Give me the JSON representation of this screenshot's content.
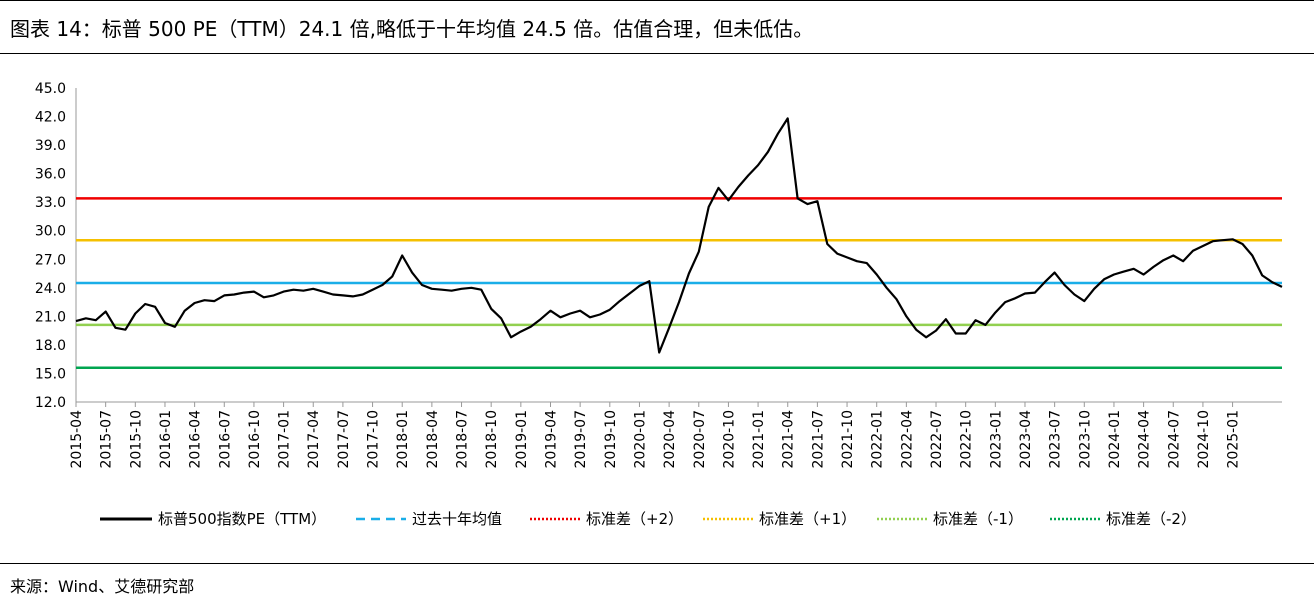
{
  "title": "图表 14：标普 500 PE（TTM）24.1 倍,略低于十年均值 24.5 倍。估值合理，但未低估。",
  "source": "来源：Wind、艾德研究部",
  "chart_data": {
    "type": "line",
    "ylim": [
      12,
      45
    ],
    "yticks": [
      "45.0",
      "42.0",
      "39.0",
      "36.0",
      "33.0",
      "30.0",
      "27.0",
      "24.0",
      "21.0",
      "18.0",
      "15.0",
      "12.0"
    ],
    "ytick_values": [
      45,
      42,
      39,
      36,
      33,
      30,
      27,
      24,
      21,
      18,
      15,
      12
    ],
    "x_range": [
      "2015-04",
      "2025-06"
    ],
    "xticks": [
      "2015-04",
      "2015-07",
      "2015-10",
      "2016-01",
      "2016-04",
      "2016-07",
      "2016-10",
      "2017-01",
      "2017-04",
      "2017-07",
      "2017-10",
      "2018-01",
      "2018-04",
      "2018-07",
      "2018-10",
      "2019-01",
      "2019-04",
      "2019-07",
      "2019-10",
      "2020-01",
      "2020-04",
      "2020-07",
      "2020-10",
      "2021-01",
      "2021-04",
      "2021-07",
      "2021-10",
      "2022-01",
      "2022-04",
      "2022-07",
      "2022-10",
      "2023-01",
      "2023-04",
      "2023-07",
      "2023-10",
      "2024-01",
      "2024-04",
      "2024-07",
      "2024-10",
      "2025-01"
    ],
    "grid": false,
    "legend_position": "bottom",
    "series": [
      {
        "name": "标普500指数PE（TTM）",
        "color": "#000000",
        "style": "solid",
        "points": [
          [
            "2015-04",
            20.5
          ],
          [
            "2015-05",
            20.8
          ],
          [
            "2015-06",
            20.6
          ],
          [
            "2015-07",
            21.5
          ],
          [
            "2015-08",
            19.8
          ],
          [
            "2015-09",
            19.6
          ],
          [
            "2015-10",
            21.3
          ],
          [
            "2015-11",
            22.3
          ],
          [
            "2015-12",
            22.0
          ],
          [
            "2016-01",
            20.3
          ],
          [
            "2016-02",
            19.9
          ],
          [
            "2016-03",
            21.6
          ],
          [
            "2016-04",
            22.4
          ],
          [
            "2016-05",
            22.7
          ],
          [
            "2016-06",
            22.6
          ],
          [
            "2016-07",
            23.2
          ],
          [
            "2016-08",
            23.3
          ],
          [
            "2016-09",
            23.5
          ],
          [
            "2016-10",
            23.6
          ],
          [
            "2016-11",
            23.0
          ],
          [
            "2016-12",
            23.2
          ],
          [
            "2017-01",
            23.6
          ],
          [
            "2017-02",
            23.8
          ],
          [
            "2017-03",
            23.7
          ],
          [
            "2017-04",
            23.9
          ],
          [
            "2017-05",
            23.6
          ],
          [
            "2017-06",
            23.3
          ],
          [
            "2017-07",
            23.2
          ],
          [
            "2017-08",
            23.1
          ],
          [
            "2017-09",
            23.3
          ],
          [
            "2017-10",
            23.8
          ],
          [
            "2017-11",
            24.3
          ],
          [
            "2017-12",
            25.2
          ],
          [
            "2018-01",
            27.4
          ],
          [
            "2018-02",
            25.6
          ],
          [
            "2018-03",
            24.3
          ],
          [
            "2018-04",
            23.9
          ],
          [
            "2018-05",
            23.8
          ],
          [
            "2018-06",
            23.7
          ],
          [
            "2018-07",
            23.9
          ],
          [
            "2018-08",
            24.0
          ],
          [
            "2018-09",
            23.8
          ],
          [
            "2018-10",
            21.8
          ],
          [
            "2018-11",
            20.8
          ],
          [
            "2018-12",
            18.8
          ],
          [
            "2019-01",
            19.4
          ],
          [
            "2019-02",
            19.9
          ],
          [
            "2019-03",
            20.7
          ],
          [
            "2019-04",
            21.6
          ],
          [
            "2019-05",
            20.9
          ],
          [
            "2019-06",
            21.3
          ],
          [
            "2019-07",
            21.6
          ],
          [
            "2019-08",
            20.9
          ],
          [
            "2019-09",
            21.2
          ],
          [
            "2019-10",
            21.7
          ],
          [
            "2019-11",
            22.6
          ],
          [
            "2019-12",
            23.4
          ],
          [
            "2020-01",
            24.2
          ],
          [
            "2020-02",
            24.7
          ],
          [
            "2020-03",
            17.2
          ],
          [
            "2020-04",
            19.8
          ],
          [
            "2020-05",
            22.5
          ],
          [
            "2020-06",
            25.5
          ],
          [
            "2020-07",
            27.8
          ],
          [
            "2020-08",
            32.5
          ],
          [
            "2020-09",
            34.5
          ],
          [
            "2020-10",
            33.2
          ],
          [
            "2020-11",
            34.6
          ],
          [
            "2020-12",
            35.8
          ],
          [
            "2021-01",
            36.9
          ],
          [
            "2021-02",
            38.3
          ],
          [
            "2021-03",
            40.2
          ],
          [
            "2021-04",
            41.8
          ],
          [
            "2021-05",
            33.4
          ],
          [
            "2021-06",
            32.8
          ],
          [
            "2021-07",
            33.1
          ],
          [
            "2021-08",
            28.6
          ],
          [
            "2021-09",
            27.6
          ],
          [
            "2021-10",
            27.2
          ],
          [
            "2021-11",
            26.8
          ],
          [
            "2021-12",
            26.6
          ],
          [
            "2022-01",
            25.4
          ],
          [
            "2022-02",
            24.0
          ],
          [
            "2022-03",
            22.8
          ],
          [
            "2022-04",
            21.0
          ],
          [
            "2022-05",
            19.6
          ],
          [
            "2022-06",
            18.8
          ],
          [
            "2022-07",
            19.5
          ],
          [
            "2022-08",
            20.7
          ],
          [
            "2022-09",
            19.2
          ],
          [
            "2022-10",
            19.2
          ],
          [
            "2022-11",
            20.6
          ],
          [
            "2022-12",
            20.1
          ],
          [
            "2023-01",
            21.4
          ],
          [
            "2023-02",
            22.5
          ],
          [
            "2023-03",
            22.9
          ],
          [
            "2023-04",
            23.4
          ],
          [
            "2023-05",
            23.5
          ],
          [
            "2023-06",
            24.6
          ],
          [
            "2023-07",
            25.6
          ],
          [
            "2023-08",
            24.3
          ],
          [
            "2023-09",
            23.3
          ],
          [
            "2023-10",
            22.6
          ],
          [
            "2023-11",
            23.9
          ],
          [
            "2023-12",
            24.9
          ],
          [
            "2024-01",
            25.4
          ],
          [
            "2024-02",
            25.7
          ],
          [
            "2024-03",
            26.0
          ],
          [
            "2024-04",
            25.4
          ],
          [
            "2024-05",
            26.2
          ],
          [
            "2024-06",
            26.9
          ],
          [
            "2024-07",
            27.4
          ],
          [
            "2024-08",
            26.8
          ],
          [
            "2024-09",
            27.9
          ],
          [
            "2024-10",
            28.4
          ],
          [
            "2024-11",
            28.9
          ],
          [
            "2024-12",
            29.0
          ],
          [
            "2025-01",
            29.1
          ],
          [
            "2025-02",
            28.6
          ],
          [
            "2025-03",
            27.4
          ],
          [
            "2025-04",
            25.3
          ],
          [
            "2025-05",
            24.6
          ],
          [
            "2025-06",
            24.1
          ]
        ]
      },
      {
        "name": "过去十年均值",
        "color": "#1aaee8",
        "style": "dashed",
        "value": 24.5
      },
      {
        "name": "标准差（+2）",
        "color": "#f00000",
        "style": "dotted",
        "value": 33.4
      },
      {
        "name": "标准差（+1）",
        "color": "#f5c000",
        "style": "dotted",
        "value": 29.0
      },
      {
        "name": "标准差（-1）",
        "color": "#92d050",
        "style": "dotted",
        "value": 20.1
      },
      {
        "name": "标准差（-2）",
        "color": "#00a550",
        "style": "dotted",
        "value": 15.6
      }
    ]
  }
}
